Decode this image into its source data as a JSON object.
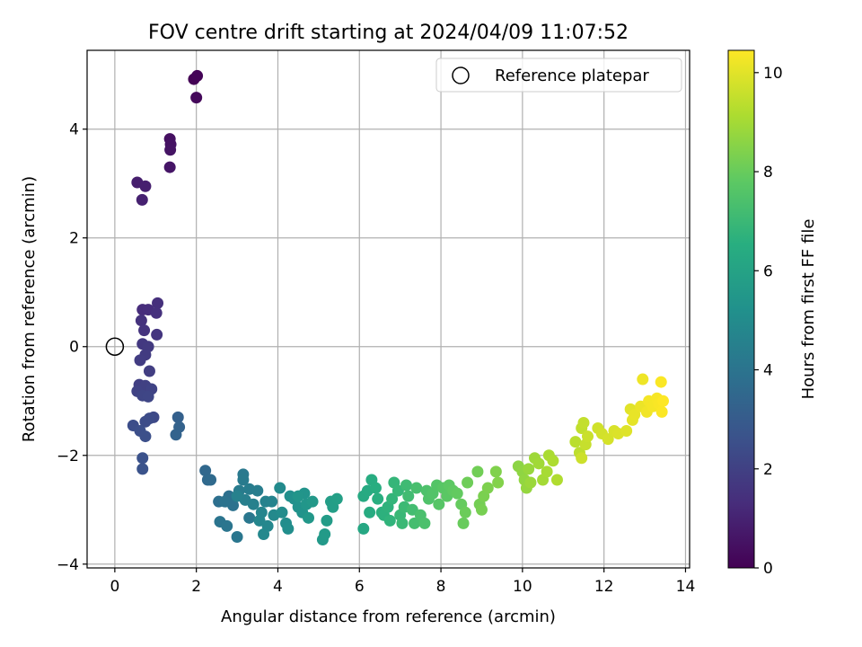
{
  "chart_data": {
    "type": "scatter",
    "title": "FOV centre drift starting at 2024/04/09 11:07:52",
    "xlabel": "Angular distance from reference (arcmin)",
    "ylabel": "Rotation from reference (arcmin)",
    "xlim": [
      -0.68,
      14.1
    ],
    "ylim": [
      -4.07,
      5.45
    ],
    "xticks": [
      0,
      2,
      4,
      6,
      8,
      10,
      12,
      14
    ],
    "yticks": [
      -4,
      -2,
      0,
      2,
      4
    ],
    "x_tick_labels": [
      "0",
      "2",
      "4",
      "6",
      "8",
      "10",
      "12",
      "14"
    ],
    "y_tick_labels": [
      "−4",
      "−2",
      "0",
      "2",
      "4"
    ],
    "grid": true,
    "legend": {
      "location": "upper right",
      "label": "Reference platepar",
      "marker": "open-circle"
    },
    "reference_point": {
      "x": 0,
      "y": 0
    },
    "colorbar": {
      "label": "Hours from first FF file",
      "colormap": "viridis",
      "range": [
        0,
        10.45
      ],
      "ticks": [
        0,
        2,
        4,
        6,
        8,
        10
      ],
      "tick_labels": [
        "0",
        "2",
        "4",
        "6",
        "8",
        "10"
      ]
    },
    "points": [
      {
        "x": 1.94,
        "y": 4.92,
        "c": 0.05
      },
      {
        "x": 2.02,
        "y": 4.98,
        "c": 0.1
      },
      {
        "x": 2.0,
        "y": 4.58,
        "c": 0.2
      },
      {
        "x": 1.35,
        "y": 3.82,
        "c": 0.45
      },
      {
        "x": 1.37,
        "y": 3.72,
        "c": 0.5
      },
      {
        "x": 1.36,
        "y": 3.62,
        "c": 0.55
      },
      {
        "x": 1.35,
        "y": 3.3,
        "c": 0.6
      },
      {
        "x": 0.55,
        "y": 3.02,
        "c": 0.85
      },
      {
        "x": 0.75,
        "y": 2.95,
        "c": 0.9
      },
      {
        "x": 0.67,
        "y": 2.7,
        "c": 0.95
      },
      {
        "x": 0.68,
        "y": 0.68,
        "c": 1.3
      },
      {
        "x": 0.82,
        "y": 0.68,
        "c": 1.35
      },
      {
        "x": 1.05,
        "y": 0.8,
        "c": 1.4
      },
      {
        "x": 1.02,
        "y": 0.62,
        "c": 1.45
      },
      {
        "x": 0.65,
        "y": 0.48,
        "c": 1.5
      },
      {
        "x": 0.72,
        "y": 0.3,
        "c": 1.55
      },
      {
        "x": 1.03,
        "y": 0.22,
        "c": 1.6
      },
      {
        "x": 0.68,
        "y": 0.05,
        "c": 1.7
      },
      {
        "x": 0.82,
        "y": 0.0,
        "c": 1.75
      },
      {
        "x": 0.75,
        "y": -0.15,
        "c": 1.8
      },
      {
        "x": 0.62,
        "y": -0.25,
        "c": 1.85
      },
      {
        "x": 0.85,
        "y": -0.45,
        "c": 1.9
      },
      {
        "x": 0.6,
        "y": -0.7,
        "c": 1.95
      },
      {
        "x": 0.75,
        "y": -0.72,
        "c": 2.0
      },
      {
        "x": 0.55,
        "y": -0.82,
        "c": 2.05
      },
      {
        "x": 0.9,
        "y": -0.78,
        "c": 2.1
      },
      {
        "x": 0.68,
        "y": -0.9,
        "c": 2.15
      },
      {
        "x": 0.82,
        "y": -0.92,
        "c": 2.2
      },
      {
        "x": 0.95,
        "y": -1.3,
        "c": 2.3
      },
      {
        "x": 0.85,
        "y": -1.32,
        "c": 2.35
      },
      {
        "x": 0.75,
        "y": -1.38,
        "c": 2.4
      },
      {
        "x": 0.45,
        "y": -1.45,
        "c": 2.45
      },
      {
        "x": 0.62,
        "y": -1.55,
        "c": 2.5
      },
      {
        "x": 0.75,
        "y": -1.65,
        "c": 2.55
      },
      {
        "x": 0.68,
        "y": -2.05,
        "c": 2.6
      },
      {
        "x": 0.68,
        "y": -2.25,
        "c": 2.65
      },
      {
        "x": 1.55,
        "y": -1.3,
        "c": 3.2
      },
      {
        "x": 1.58,
        "y": -1.48,
        "c": 3.25
      },
      {
        "x": 1.5,
        "y": -1.62,
        "c": 3.3
      },
      {
        "x": 2.22,
        "y": -2.28,
        "c": 3.5
      },
      {
        "x": 2.28,
        "y": -2.45,
        "c": 3.55
      },
      {
        "x": 2.35,
        "y": -2.45,
        "c": 3.6
      },
      {
        "x": 2.55,
        "y": -2.85,
        "c": 3.8
      },
      {
        "x": 2.8,
        "y": -2.75,
        "c": 3.85
      },
      {
        "x": 2.9,
        "y": -2.92,
        "c": 3.9
      },
      {
        "x": 2.7,
        "y": -2.85,
        "c": 3.95
      },
      {
        "x": 2.58,
        "y": -3.22,
        "c": 4.0
      },
      {
        "x": 2.75,
        "y": -3.3,
        "c": 4.05
      },
      {
        "x": 3.0,
        "y": -3.5,
        "c": 4.1
      },
      {
        "x": 3.3,
        "y": -3.15,
        "c": 4.15
      },
      {
        "x": 3.15,
        "y": -2.35,
        "c": 4.2
      },
      {
        "x": 3.15,
        "y": -2.45,
        "c": 4.25
      },
      {
        "x": 3.05,
        "y": -2.65,
        "c": 4.3
      },
      {
        "x": 3.3,
        "y": -2.62,
        "c": 4.35
      },
      {
        "x": 3.5,
        "y": -2.65,
        "c": 4.4
      },
      {
        "x": 3.2,
        "y": -2.82,
        "c": 4.45
      },
      {
        "x": 3.4,
        "y": -2.9,
        "c": 4.5
      },
      {
        "x": 3.0,
        "y": -2.75,
        "c": 4.55
      },
      {
        "x": 3.7,
        "y": -2.85,
        "c": 4.6
      },
      {
        "x": 3.85,
        "y": -2.85,
        "c": 4.65
      },
      {
        "x": 3.6,
        "y": -3.05,
        "c": 4.7
      },
      {
        "x": 3.55,
        "y": -3.2,
        "c": 4.75
      },
      {
        "x": 3.75,
        "y": -3.3,
        "c": 4.8
      },
      {
        "x": 3.65,
        "y": -3.45,
        "c": 4.85
      },
      {
        "x": 3.9,
        "y": -3.1,
        "c": 4.9
      },
      {
        "x": 4.05,
        "y": -2.6,
        "c": 4.95
      },
      {
        "x": 4.1,
        "y": -3.05,
        "c": 5.0
      },
      {
        "x": 4.2,
        "y": -3.25,
        "c": 5.05
      },
      {
        "x": 4.25,
        "y": -3.35,
        "c": 5.1
      },
      {
        "x": 4.3,
        "y": -2.75,
        "c": 5.15
      },
      {
        "x": 4.4,
        "y": -2.8,
        "c": 5.2
      },
      {
        "x": 4.5,
        "y": -2.95,
        "c": 5.25
      },
      {
        "x": 4.6,
        "y": -3.05,
        "c": 5.3
      },
      {
        "x": 4.65,
        "y": -2.7,
        "c": 5.35
      },
      {
        "x": 4.5,
        "y": -2.75,
        "c": 5.4
      },
      {
        "x": 4.7,
        "y": -2.9,
        "c": 5.45
      },
      {
        "x": 4.75,
        "y": -3.15,
        "c": 5.5
      },
      {
        "x": 4.85,
        "y": -2.85,
        "c": 5.55
      },
      {
        "x": 5.1,
        "y": -3.55,
        "c": 5.6
      },
      {
        "x": 5.15,
        "y": -3.45,
        "c": 5.65
      },
      {
        "x": 5.2,
        "y": -3.2,
        "c": 5.7
      },
      {
        "x": 5.3,
        "y": -2.85,
        "c": 5.75
      },
      {
        "x": 5.35,
        "y": -2.95,
        "c": 5.8
      },
      {
        "x": 5.45,
        "y": -2.8,
        "c": 5.85
      },
      {
        "x": 6.1,
        "y": -3.35,
        "c": 6.2
      },
      {
        "x": 6.1,
        "y": -2.75,
        "c": 6.3
      },
      {
        "x": 6.2,
        "y": -2.65,
        "c": 6.35
      },
      {
        "x": 6.25,
        "y": -3.05,
        "c": 6.4
      },
      {
        "x": 6.3,
        "y": -2.45,
        "c": 6.45
      },
      {
        "x": 6.4,
        "y": -2.6,
        "c": 6.5
      },
      {
        "x": 6.45,
        "y": -2.8,
        "c": 6.55
      },
      {
        "x": 6.55,
        "y": -3.05,
        "c": 6.6
      },
      {
        "x": 6.6,
        "y": -3.1,
        "c": 6.65
      },
      {
        "x": 6.7,
        "y": -2.95,
        "c": 6.7
      },
      {
        "x": 6.75,
        "y": -3.2,
        "c": 6.75
      },
      {
        "x": 6.8,
        "y": -2.8,
        "c": 6.8
      },
      {
        "x": 6.85,
        "y": -2.5,
        "c": 6.85
      },
      {
        "x": 6.95,
        "y": -2.65,
        "c": 6.9
      },
      {
        "x": 7.0,
        "y": -3.1,
        "c": 6.95
      },
      {
        "x": 7.05,
        "y": -3.25,
        "c": 7.0
      },
      {
        "x": 7.1,
        "y": -2.95,
        "c": 7.05
      },
      {
        "x": 7.15,
        "y": -2.55,
        "c": 7.1
      },
      {
        "x": 7.2,
        "y": -2.75,
        "c": 7.15
      },
      {
        "x": 7.3,
        "y": -3.0,
        "c": 7.2
      },
      {
        "x": 7.35,
        "y": -3.25,
        "c": 7.25
      },
      {
        "x": 7.4,
        "y": -2.6,
        "c": 7.3
      },
      {
        "x": 7.5,
        "y": -3.1,
        "c": 7.35
      },
      {
        "x": 7.6,
        "y": -3.25,
        "c": 7.4
      },
      {
        "x": 7.65,
        "y": -2.65,
        "c": 7.45
      },
      {
        "x": 7.7,
        "y": -2.8,
        "c": 7.5
      },
      {
        "x": 7.8,
        "y": -2.7,
        "c": 7.55
      },
      {
        "x": 7.9,
        "y": -2.55,
        "c": 7.6
      },
      {
        "x": 7.95,
        "y": -2.9,
        "c": 7.65
      },
      {
        "x": 8.05,
        "y": -2.6,
        "c": 7.7
      },
      {
        "x": 8.15,
        "y": -2.75,
        "c": 7.75
      },
      {
        "x": 8.2,
        "y": -2.55,
        "c": 7.8
      },
      {
        "x": 8.3,
        "y": -2.65,
        "c": 7.85
      },
      {
        "x": 8.4,
        "y": -2.7,
        "c": 7.9
      },
      {
        "x": 8.5,
        "y": -2.9,
        "c": 7.95
      },
      {
        "x": 8.55,
        "y": -3.25,
        "c": 8.0
      },
      {
        "x": 8.6,
        "y": -3.05,
        "c": 8.05
      },
      {
        "x": 8.65,
        "y": -2.5,
        "c": 8.1
      },
      {
        "x": 8.9,
        "y": -2.3,
        "c": 8.15
      },
      {
        "x": 8.95,
        "y": -2.9,
        "c": 8.2
      },
      {
        "x": 9.0,
        "y": -3.0,
        "c": 8.25
      },
      {
        "x": 9.05,
        "y": -2.75,
        "c": 8.3
      },
      {
        "x": 9.15,
        "y": -2.6,
        "c": 8.35
      },
      {
        "x": 9.35,
        "y": -2.3,
        "c": 8.4
      },
      {
        "x": 9.4,
        "y": -2.5,
        "c": 8.45
      },
      {
        "x": 9.9,
        "y": -2.2,
        "c": 8.6
      },
      {
        "x": 10.0,
        "y": -2.3,
        "c": 8.65
      },
      {
        "x": 10.05,
        "y": -2.45,
        "c": 8.7
      },
      {
        "x": 10.1,
        "y": -2.6,
        "c": 8.75
      },
      {
        "x": 10.15,
        "y": -2.25,
        "c": 8.8
      },
      {
        "x": 10.2,
        "y": -2.5,
        "c": 8.85
      },
      {
        "x": 10.3,
        "y": -2.05,
        "c": 8.9
      },
      {
        "x": 10.4,
        "y": -2.15,
        "c": 8.95
      },
      {
        "x": 10.5,
        "y": -2.45,
        "c": 9.0
      },
      {
        "x": 10.6,
        "y": -2.3,
        "c": 9.05
      },
      {
        "x": 10.65,
        "y": -2.0,
        "c": 9.1
      },
      {
        "x": 10.75,
        "y": -2.1,
        "c": 9.15
      },
      {
        "x": 10.85,
        "y": -2.45,
        "c": 9.2
      },
      {
        "x": 11.3,
        "y": -1.75,
        "c": 9.35
      },
      {
        "x": 11.4,
        "y": -1.95,
        "c": 9.4
      },
      {
        "x": 11.45,
        "y": -1.5,
        "c": 9.45
      },
      {
        "x": 11.5,
        "y": -1.4,
        "c": 9.5
      },
      {
        "x": 11.55,
        "y": -1.8,
        "c": 9.55
      },
      {
        "x": 11.6,
        "y": -1.65,
        "c": 9.6
      },
      {
        "x": 11.45,
        "y": -2.05,
        "c": 9.65
      },
      {
        "x": 11.85,
        "y": -1.5,
        "c": 9.7
      },
      {
        "x": 11.95,
        "y": -1.6,
        "c": 9.75
      },
      {
        "x": 12.1,
        "y": -1.7,
        "c": 9.8
      },
      {
        "x": 12.25,
        "y": -1.55,
        "c": 9.85
      },
      {
        "x": 12.35,
        "y": -1.6,
        "c": 9.9
      },
      {
        "x": 12.55,
        "y": -1.55,
        "c": 9.95
      },
      {
        "x": 12.65,
        "y": -1.15,
        "c": 10.0
      },
      {
        "x": 12.7,
        "y": -1.35,
        "c": 10.05
      },
      {
        "x": 12.75,
        "y": -1.25,
        "c": 10.1
      },
      {
        "x": 12.9,
        "y": -1.1,
        "c": 10.15
      },
      {
        "x": 12.95,
        "y": -0.6,
        "c": 10.2
      },
      {
        "x": 13.05,
        "y": -1.2,
        "c": 10.25
      },
      {
        "x": 13.1,
        "y": -1.0,
        "c": 10.3
      },
      {
        "x": 13.2,
        "y": -1.1,
        "c": 10.32
      },
      {
        "x": 13.3,
        "y": -0.95,
        "c": 10.35
      },
      {
        "x": 13.35,
        "y": -1.05,
        "c": 10.38
      },
      {
        "x": 13.4,
        "y": -0.65,
        "c": 10.4
      },
      {
        "x": 13.42,
        "y": -1.2,
        "c": 10.42
      },
      {
        "x": 13.45,
        "y": -1.0,
        "c": 10.45
      }
    ]
  }
}
